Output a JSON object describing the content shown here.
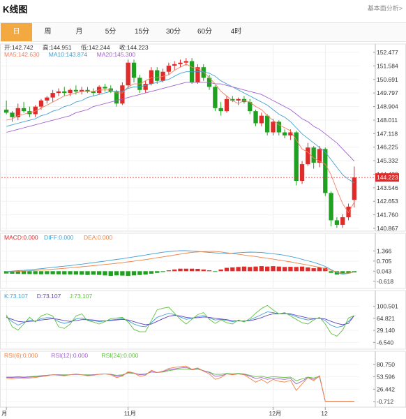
{
  "header": {
    "title": "K线图",
    "fund_link": "基本面分析>"
  },
  "tabs": [
    {
      "label": "日",
      "active": true
    },
    {
      "label": "周",
      "active": false
    },
    {
      "label": "月",
      "active": false
    },
    {
      "label": "5分",
      "active": false
    },
    {
      "label": "15分",
      "active": false
    },
    {
      "label": "30分",
      "active": false
    },
    {
      "label": "60分",
      "active": false
    },
    {
      "label": "4时",
      "active": false
    }
  ],
  "colors": {
    "up": "#e02b2b",
    "down": "#20a020",
    "ma5": "#f08060",
    "ma10": "#40a0d0",
    "ma20": "#a060d0",
    "accent": "#f4a940"
  },
  "chart_data": [
    {
      "type": "candlestick",
      "name": "price",
      "info_line1": [
        {
          "label": "开:",
          "value": "142.742"
        },
        {
          "label": "高:",
          "value": "144.951"
        },
        {
          "label": "低:",
          "value": "142.244"
        },
        {
          "label": "收:",
          "value": "144.223"
        }
      ],
      "info_line2": [
        {
          "label": "MA5:",
          "value": "142.630",
          "color": "#f08060"
        },
        {
          "label": "MA10:",
          "value": "143.874",
          "color": "#40a0d0"
        },
        {
          "label": "MA20:",
          "value": "145.300",
          "color": "#a060d0"
        }
      ],
      "y_ticks": [
        "152.477",
        "151.584",
        "150.691",
        "149.797",
        "148.904",
        "148.011",
        "147.118",
        "146.225",
        "145.332",
        "144.439",
        "143.546",
        "142.653",
        "141.760",
        "140.867"
      ],
      "last_price": "144.223",
      "ylim": [
        140.867,
        152.477
      ],
      "candles": [
        [
          148.7,
          149.3,
          148.4,
          148.5
        ],
        [
          148.5,
          148.6,
          147.9,
          148.2
        ],
        [
          148.2,
          149.1,
          148.0,
          148.8
        ],
        [
          148.8,
          149.2,
          148.5,
          148.6
        ],
        [
          148.6,
          148.9,
          148.2,
          148.4
        ],
        [
          148.4,
          149.0,
          148.2,
          148.9
        ],
        [
          148.9,
          149.4,
          148.7,
          149.3
        ],
        [
          149.3,
          149.6,
          149.1,
          149.5
        ],
        [
          149.5,
          150.0,
          149.2,
          149.8
        ],
        [
          149.8,
          150.1,
          149.6,
          149.9
        ],
        [
          149.9,
          150.2,
          149.6,
          149.8
        ],
        [
          149.8,
          150.1,
          149.6,
          150.0
        ],
        [
          150.0,
          150.3,
          149.7,
          149.9
        ],
        [
          149.9,
          150.2,
          149.7,
          150.0
        ],
        [
          150.0,
          150.2,
          149.8,
          149.9
        ],
        [
          149.9,
          150.1,
          149.6,
          149.8
        ],
        [
          149.8,
          150.3,
          149.7,
          150.2
        ],
        [
          150.2,
          150.4,
          149.9,
          150.1
        ],
        [
          150.1,
          150.3,
          149.8,
          149.9
        ],
        [
          149.9,
          150.0,
          148.9,
          149.1
        ],
        [
          149.1,
          150.5,
          149.0,
          150.3
        ],
        [
          150.3,
          152.0,
          150.1,
          151.8
        ],
        [
          151.8,
          152.0,
          150.5,
          150.8
        ],
        [
          150.8,
          151.0,
          149.8,
          150.0
        ],
        [
          150.0,
          150.6,
          149.8,
          150.4
        ],
        [
          150.4,
          151.5,
          150.3,
          151.3
        ],
        [
          151.3,
          151.5,
          150.4,
          150.6
        ],
        [
          150.6,
          151.4,
          150.5,
          151.2
        ],
        [
          151.2,
          151.8,
          151.0,
          151.6
        ],
        [
          151.6,
          151.9,
          151.3,
          151.7
        ],
        [
          151.7,
          152.0,
          151.5,
          151.8
        ],
        [
          151.8,
          152.1,
          151.6,
          151.9
        ],
        [
          151.9,
          152.1,
          150.4,
          150.5
        ],
        [
          150.5,
          151.7,
          150.4,
          151.5
        ],
        [
          151.5,
          151.7,
          150.6,
          150.8
        ],
        [
          150.8,
          151.0,
          150.0,
          150.2
        ],
        [
          150.2,
          150.3,
          148.6,
          148.8
        ],
        [
          148.8,
          149.2,
          148.3,
          148.6
        ],
        [
          148.6,
          149.6,
          148.5,
          149.4
        ],
        [
          149.4,
          149.6,
          149.2,
          149.3
        ],
        [
          149.3,
          149.5,
          149.0,
          149.4
        ],
        [
          149.4,
          149.6,
          149.1,
          149.2
        ],
        [
          149.2,
          149.4,
          148.4,
          148.6
        ],
        [
          148.6,
          148.7,
          147.6,
          147.8
        ],
        [
          147.8,
          148.5,
          147.6,
          148.3
        ],
        [
          148.3,
          148.4,
          147.0,
          147.2
        ],
        [
          147.2,
          148.1,
          147.0,
          147.9
        ],
        [
          147.9,
          148.0,
          147.0,
          147.2
        ],
        [
          147.2,
          147.4,
          146.8,
          147.0
        ],
        [
          147.0,
          147.4,
          146.7,
          147.2
        ],
        [
          147.2,
          147.3,
          143.7,
          144.0
        ],
        [
          144.0,
          145.3,
          143.8,
          145.1
        ],
        [
          145.1,
          146.5,
          145.0,
          146.2
        ],
        [
          146.2,
          146.3,
          144.8,
          145.2
        ],
        [
          145.2,
          146.3,
          144.9,
          146.1
        ],
        [
          146.1,
          146.2,
          143.0,
          143.2
        ],
        [
          143.2,
          143.3,
          141.0,
          141.4
        ],
        [
          141.4,
          141.6,
          140.9,
          141.1
        ],
        [
          141.1,
          141.8,
          140.9,
          141.6
        ],
        [
          141.6,
          142.5,
          141.4,
          142.3
        ],
        [
          142.742,
          144.951,
          142.244,
          144.223
        ]
      ],
      "ma5": [
        148.0,
        148.1,
        148.3,
        148.4,
        148.5,
        148.6,
        148.8,
        149.0,
        149.2,
        149.4,
        149.6,
        149.7,
        149.8,
        149.9,
        149.9,
        149.9,
        150.0,
        150.0,
        150.0,
        149.8,
        149.8,
        150.2,
        150.4,
        150.4,
        150.6,
        150.8,
        150.8,
        150.9,
        151.0,
        151.3,
        151.5,
        151.7,
        151.5,
        151.4,
        151.2,
        150.8,
        150.4,
        149.9,
        149.6,
        149.3,
        149.1,
        149.3,
        149.2,
        148.9,
        148.7,
        148.3,
        148.0,
        147.7,
        147.5,
        147.3,
        146.7,
        146.1,
        145.9,
        145.5,
        145.3,
        145.1,
        144.4,
        143.4,
        142.5,
        141.9,
        142.6
      ],
      "ma10": [
        147.6,
        147.7,
        147.8,
        147.9,
        148.0,
        148.1,
        148.3,
        148.4,
        148.6,
        148.7,
        148.9,
        149.0,
        149.2,
        149.3,
        149.5,
        149.6,
        149.7,
        149.8,
        149.9,
        149.9,
        149.9,
        150.1,
        150.2,
        150.2,
        150.3,
        150.4,
        150.5,
        150.6,
        150.7,
        150.9,
        151.1,
        151.2,
        151.2,
        151.2,
        151.2,
        151.1,
        150.9,
        150.6,
        150.4,
        150.2,
        150.0,
        149.8,
        149.6,
        149.4,
        149.2,
        149.0,
        148.7,
        148.4,
        148.2,
        147.9,
        147.5,
        147.1,
        146.8,
        146.5,
        146.2,
        145.9,
        145.4,
        144.9,
        144.4,
        144.1,
        143.874
      ],
      "ma20": [
        147.2,
        147.3,
        147.4,
        147.5,
        147.6,
        147.7,
        147.8,
        147.9,
        148.0,
        148.1,
        148.2,
        148.3,
        148.5,
        148.6,
        148.7,
        148.9,
        149.0,
        149.1,
        149.2,
        149.3,
        149.4,
        149.5,
        149.6,
        149.7,
        149.8,
        149.9,
        150.0,
        150.1,
        150.2,
        150.3,
        150.4,
        150.5,
        150.5,
        150.5,
        150.5,
        150.5,
        150.4,
        150.4,
        150.3,
        150.2,
        150.1,
        150.0,
        149.9,
        149.8,
        149.7,
        149.5,
        149.3,
        149.1,
        148.9,
        148.7,
        148.4,
        148.1,
        147.9,
        147.6,
        147.4,
        147.1,
        146.8,
        146.5,
        146.1,
        145.7,
        145.3
      ]
    },
    {
      "type": "macd",
      "name": "macd",
      "legend": [
        {
          "label": "MACD:",
          "value": "0.000",
          "color": "#e02b2b"
        },
        {
          "label": "DIFF:",
          "value": "0.000",
          "color": "#40a0d0"
        },
        {
          "label": "DEA:",
          "value": "0.000",
          "color": "#f08040"
        }
      ],
      "y_ticks": [
        "1.366",
        "0.705",
        "0.043",
        "-0.618"
      ],
      "ylim": [
        -0.9,
        1.7
      ],
      "hist": [
        -0.28,
        -0.3,
        -0.32,
        -0.34,
        -0.34,
        -0.35,
        -0.36,
        -0.35,
        -0.36,
        -0.37,
        -0.38,
        -0.38,
        -0.4,
        -0.42,
        -0.45,
        -0.42,
        -0.44,
        -0.5,
        -0.55,
        -0.5,
        -0.52,
        -0.55,
        -0.5,
        -0.45,
        -0.4,
        -0.3,
        -0.2,
        -0.1,
        0.1,
        0.2,
        0.3,
        0.3,
        0.3,
        0.28,
        0.2,
        0.1,
        -0.05,
        0.2,
        0.4,
        0.45,
        0.5,
        0.55,
        0.5,
        0.55,
        0.6,
        0.55,
        0.6,
        0.55,
        0.5,
        0.52,
        0.5,
        0.55,
        0.45,
        0.35,
        0.45,
        0.4,
        -0.2,
        -0.4,
        -0.35,
        -0.25,
        -0.15
      ],
      "diff": [
        0.02,
        0.05,
        0.08,
        0.1,
        0.13,
        0.17,
        0.21,
        0.25,
        0.29,
        0.33,
        0.37,
        0.41,
        0.46,
        0.5,
        0.55,
        0.6,
        0.65,
        0.7,
        0.76,
        0.81,
        0.86,
        0.92,
        0.98,
        1.04,
        1.1,
        1.16,
        1.22,
        1.28,
        1.32,
        1.36,
        1.38,
        1.38,
        1.36,
        1.33,
        1.3,
        1.27,
        1.24,
        1.21,
        1.2,
        1.22,
        1.25,
        1.27,
        1.29,
        1.28,
        1.26,
        1.22,
        1.18,
        1.14,
        1.08,
        1.0,
        0.92,
        0.82,
        0.72,
        0.62,
        0.5,
        0.35,
        0.15,
        -0.05,
        -0.15,
        -0.1,
        0.0
      ],
      "dea": [
        0.0,
        0.01,
        0.03,
        0.05,
        0.07,
        0.09,
        0.12,
        0.14,
        0.17,
        0.2,
        0.23,
        0.26,
        0.3,
        0.33,
        0.37,
        0.4,
        0.44,
        0.48,
        0.52,
        0.56,
        0.6,
        0.65,
        0.7,
        0.75,
        0.8,
        0.86,
        0.92,
        0.98,
        1.04,
        1.1,
        1.16,
        1.22,
        1.27,
        1.3,
        1.32,
        1.33,
        1.33,
        1.3,
        1.25,
        1.2,
        1.15,
        1.1,
        1.05,
        1.0,
        0.94,
        0.89,
        0.83,
        0.77,
        0.71,
        0.65,
        0.58,
        0.51,
        0.44,
        0.37,
        0.3,
        0.2,
        0.1,
        0.0,
        -0.1,
        -0.08,
        0.0
      ]
    },
    {
      "type": "kdj",
      "name": "kdj",
      "legend": [
        {
          "label": "K:",
          "value": "73.107",
          "color": "#40a0d0"
        },
        {
          "label": "D:",
          "value": "73.107",
          "color": "#6040c0"
        },
        {
          "label": "J:",
          "value": "73.107",
          "color": "#60c040"
        }
      ],
      "y_ticks": [
        "100.501",
        "64.821",
        "29.140",
        "-6.540"
      ],
      "ylim": [
        -12,
        106
      ],
      "k": [
        70,
        55,
        45,
        52,
        60,
        56,
        64,
        67,
        66,
        55,
        50,
        54,
        63,
        66,
        60,
        58,
        55,
        57,
        60,
        62,
        64,
        58,
        48,
        42,
        40,
        52,
        68,
        74,
        80,
        76,
        69,
        62,
        65,
        70,
        73,
        66,
        60,
        62,
        58,
        55,
        58,
        56,
        60,
        68,
        76,
        84,
        82,
        78,
        80,
        76,
        70,
        64,
        60,
        63,
        66,
        58,
        44,
        38,
        42,
        56,
        73.107
      ],
      "d": [
        68,
        62,
        56,
        54,
        56,
        57,
        60,
        62,
        64,
        62,
        58,
        56,
        58,
        61,
        61,
        60,
        58,
        57,
        58,
        60,
        62,
        60,
        55,
        50,
        46,
        48,
        56,
        64,
        71,
        74,
        72,
        68,
        66,
        67,
        69,
        68,
        65,
        63,
        61,
        58,
        57,
        57,
        58,
        62,
        67,
        74,
        78,
        78,
        79,
        78,
        74,
        70,
        66,
        64,
        65,
        63,
        56,
        50,
        46,
        50,
        73.107
      ],
      "j": [
        75,
        40,
        30,
        48,
        68,
        54,
        72,
        78,
        72,
        40,
        35,
        48,
        72,
        78,
        58,
        54,
        48,
        55,
        64,
        66,
        68,
        54,
        32,
        25,
        25,
        58,
        90,
        95,
        98,
        80,
        62,
        48,
        62,
        76,
        82,
        62,
        50,
        60,
        52,
        48,
        60,
        54,
        64,
        80,
        94,
        103,
        90,
        78,
        82,
        72,
        62,
        52,
        48,
        60,
        68,
        48,
        20,
        12,
        30,
        66,
        73.107
      ]
    },
    {
      "type": "rsi",
      "name": "rsi",
      "legend": [
        {
          "label": "RSI(6):",
          "value": "0.000",
          "color": "#f08040"
        },
        {
          "label": "RSI(12):",
          "value": "0.000",
          "color": "#a060d0"
        },
        {
          "label": "RSI(24):",
          "value": "0.000",
          "color": "#60c040"
        }
      ],
      "y_ticks": [
        "80.750",
        "53.596",
        "26.442",
        "-0.712"
      ],
      "ylim": [
        -5,
        85
      ],
      "rsi6": [
        50,
        49,
        51,
        50,
        51,
        52,
        54,
        56,
        58,
        57,
        56,
        58,
        60,
        58,
        56,
        57,
        59,
        60,
        58,
        52,
        55,
        65,
        62,
        55,
        57,
        68,
        63,
        66,
        72,
        74,
        76,
        77,
        70,
        73,
        66,
        60,
        48,
        52,
        60,
        58,
        60,
        58,
        50,
        42,
        48,
        40,
        48,
        44,
        42,
        46,
        24,
        38,
        52,
        45,
        56,
        0,
        0,
        0,
        0,
        0,
        0
      ],
      "rsi12": [
        52,
        52,
        53,
        52,
        53,
        54,
        55,
        57,
        58,
        58,
        57,
        58,
        59,
        58,
        57,
        58,
        59,
        60,
        59,
        55,
        57,
        63,
        62,
        58,
        59,
        65,
        63,
        65,
        69,
        71,
        73,
        74,
        70,
        72,
        67,
        63,
        55,
        56,
        60,
        59,
        60,
        59,
        55,
        50,
        52,
        48,
        51,
        49,
        48,
        50,
        38,
        44,
        52,
        48,
        54,
        0,
        0,
        0,
        0,
        0,
        0
      ],
      "rsi24": [
        53,
        53,
        54,
        53,
        54,
        55,
        56,
        57,
        58,
        58,
        58,
        58,
        59,
        58,
        58,
        58,
        59,
        60,
        59,
        57,
        58,
        62,
        61,
        59,
        60,
        64,
        63,
        64,
        67,
        69,
        70,
        71,
        69,
        70,
        67,
        64,
        59,
        59,
        61,
        60,
        61,
        60,
        57,
        54,
        55,
        52,
        54,
        53,
        52,
        53,
        45,
        49,
        53,
        51,
        55,
        0,
        0,
        0,
        0,
        0,
        0
      ]
    }
  ],
  "x_axis": [
    {
      "label": "月",
      "index": 0
    },
    {
      "label": "11月",
      "index": 21
    },
    {
      "label": "12月",
      "index": 46
    },
    {
      "label": "12",
      "index": 55
    }
  ]
}
